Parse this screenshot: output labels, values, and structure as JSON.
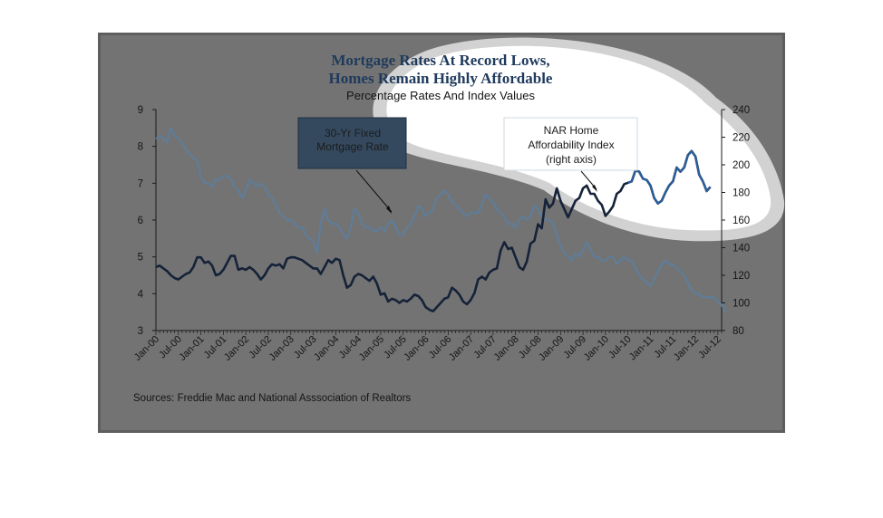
{
  "chart_data": {
    "type": "line",
    "title_line1": "Mortgage Rates At Record Lows,",
    "title_line2": "Homes Remain Highly Affordable",
    "subtitle": "Percentage Rates And Index Values",
    "source": "Sources:  Freddie Mac and National Asssociation of Realtors",
    "x_tick_labels": [
      "Jan-00",
      "Jul-00",
      "Jan-01",
      "Jul-01",
      "Jan-02",
      "Jul-02",
      "Jan-03",
      "Jul-03",
      "Jan-04",
      "Jul-04",
      "Jan-05",
      "Jul-05",
      "Jan-06",
      "Jul-06",
      "Jan-07",
      "Jul-07",
      "Jan-08",
      "Jul-08",
      "Jan-09",
      "Jul-09",
      "Jan-10",
      "Jul-10",
      "Jan-11",
      "Jul-11",
      "Jan-12",
      "Jul-12"
    ],
    "x_start": "Jan-00",
    "x_end": "Aug-12",
    "left_axis": {
      "min": 3,
      "max": 9,
      "ticks": [
        3,
        4,
        5,
        6,
        7,
        8,
        9
      ]
    },
    "right_axis": {
      "min": 80,
      "max": 240,
      "ticks": [
        80,
        100,
        120,
        140,
        160,
        180,
        200,
        220,
        240
      ]
    },
    "grid": false,
    "annotations": {
      "mortgage_box_line1": "30-Yr Fixed",
      "mortgage_box_line2": "Mortgage Rate",
      "nar_box_line1": "NAR Home",
      "nar_box_line2": "Affordability Index",
      "nar_box_line3": "(right axis)"
    },
    "colors": {
      "mortgage_rate": "#5f7d99",
      "affordability_index": "#152238",
      "affordability_index_highlight": "#2a5f9e",
      "title_dim": "#1f3a5c",
      "title_highlight": "#5b8bc0",
      "background_dim": "#737373"
    },
    "series": [
      {
        "key": "mortgage_rate",
        "axis": "left",
        "values": [
          8.2,
          8.3,
          8.2,
          8.1,
          8.5,
          8.3,
          8.2,
          8.1,
          7.9,
          7.8,
          7.7,
          7.6,
          7.2,
          7.0,
          7.0,
          6.9,
          7.1,
          7.1,
          7.2,
          7.2,
          7.1,
          6.9,
          6.8,
          6.6,
          6.8,
          7.1,
          7.0,
          6.9,
          7.0,
          6.9,
          6.7,
          6.6,
          6.4,
          6.2,
          6.1,
          6.0,
          6.0,
          5.9,
          5.8,
          5.8,
          5.6,
          5.5,
          5.4,
          5.1,
          5.9,
          6.3,
          6.0,
          5.9,
          5.9,
          5.8,
          5.6,
          5.5,
          5.8,
          6.3,
          6.2,
          5.9,
          5.8,
          5.8,
          5.7,
          5.7,
          5.8,
          5.7,
          5.9,
          6.0,
          5.8,
          5.6,
          5.6,
          5.8,
          5.9,
          6.1,
          6.4,
          6.3,
          6.1,
          6.2,
          6.3,
          6.6,
          6.7,
          6.8,
          6.7,
          6.5,
          6.4,
          6.3,
          6.2,
          6.1,
          6.2,
          6.2,
          6.2,
          6.4,
          6.7,
          6.6,
          6.5,
          6.3,
          6.2,
          6.1,
          5.9,
          5.9,
          5.8,
          6.0,
          6.1,
          6.0,
          6.1,
          6.4,
          6.3,
          6.1,
          6.0,
          6.0,
          5.9,
          5.6,
          5.3,
          5.1,
          5.0,
          4.9,
          5.1,
          5.0,
          5.2,
          5.4,
          5.2,
          5.0,
          5.0,
          4.9,
          4.9,
          5.0,
          5.0,
          4.8,
          4.9,
          5.0,
          4.9,
          4.9,
          4.7,
          4.5,
          4.4,
          4.3,
          4.2,
          4.4,
          4.6,
          4.8,
          4.9,
          4.8,
          4.8,
          4.7,
          4.6,
          4.5,
          4.3,
          4.1,
          4.0,
          4.0,
          3.9,
          3.9,
          3.9,
          3.9,
          3.8,
          3.7,
          3.5
        ]
      },
      {
        "key": "affordability_index",
        "axis": "right",
        "values": [
          126,
          127,
          125,
          123,
          120,
          118,
          117,
          119,
          121,
          122,
          126,
          133,
          133,
          129,
          130,
          127,
          120,
          121,
          124,
          129,
          134,
          134,
          124,
          125,
          124,
          126,
          124,
          121,
          117,
          120,
          125,
          128,
          127,
          128,
          125,
          132,
          133,
          133,
          132,
          131,
          129,
          127,
          125,
          125,
          121,
          126,
          131,
          129,
          132,
          131,
          120,
          111,
          113,
          119,
          121,
          120,
          118,
          116,
          119,
          114,
          106,
          107,
          101,
          103,
          102,
          100,
          102,
          101,
          103,
          106,
          105,
          102,
          97,
          95,
          94,
          97,
          100,
          103,
          104,
          111,
          109,
          106,
          101,
          99,
          102,
          107,
          117,
          119,
          117,
          122,
          124,
          125,
          138,
          144,
          139,
          140,
          133,
          126,
          124,
          130,
          143,
          145,
          157,
          154,
          175,
          169,
          172,
          183,
          174,
          168,
          162,
          168,
          174,
          176,
          183,
          185,
          179,
          179,
          174,
          171,
          163,
          166,
          170,
          179,
          181,
          186,
          187,
          188,
          196,
          195,
          190,
          189,
          185,
          176,
          172,
          174,
          180,
          185,
          188,
          198,
          195,
          198,
          207,
          210,
          206,
          193,
          188,
          181,
          184
        ]
      }
    ]
  }
}
